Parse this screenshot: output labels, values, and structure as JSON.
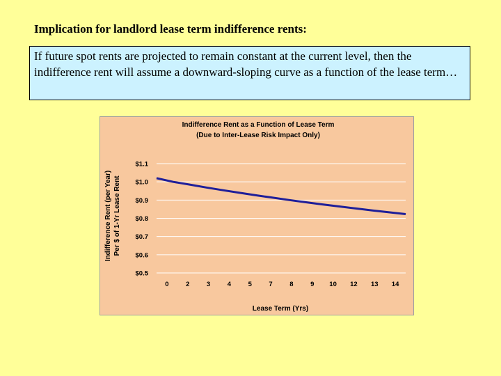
{
  "heading": "Implication for landlord lease term indifference rents:",
  "callout": "If future spot rents are projected to remain constant at the current level, then the indifference rent will assume a downward-sloping curve as a function of the lease term…",
  "chart_data": {
    "type": "line",
    "title": "Indifference Rent as a Function of Lease Term",
    "subtitle": "(Due to Inter-Lease Risk Impact Only)",
    "xlabel": "Lease Term (Yrs)",
    "ylabel_line1": "Indifference Rent (per Year)",
    "ylabel_line2": "Per $ of 1-Yr Lease Rent",
    "x_tick_labels": [
      "0",
      "2",
      "3",
      "4",
      "5",
      "7",
      "8",
      "9",
      "10",
      "12",
      "13",
      "14"
    ],
    "y_tick_labels": [
      "$0.5",
      "$0.6",
      "$0.7",
      "$0.8",
      "$0.9",
      "$1.0",
      "$1.1"
    ],
    "ylim": [
      0.5,
      1.1
    ],
    "xlim": [
      0,
      15
    ],
    "grid": "horizontal",
    "series": [
      {
        "x": [
          0,
          1,
          2,
          3,
          4,
          5,
          6,
          7,
          8,
          9,
          10,
          11,
          12,
          13,
          14,
          15
        ],
        "values": [
          1.02,
          1.0,
          0.985,
          0.969,
          0.954,
          0.94,
          0.926,
          0.913,
          0.9,
          0.888,
          0.876,
          0.865,
          0.854,
          0.843,
          0.833,
          0.823
        ]
      }
    ],
    "colors": {
      "line": "#1f1f99",
      "plot_bg": "#f8c89e",
      "grid": "#ffffff",
      "frame_border": "#a0a0a0"
    }
  }
}
